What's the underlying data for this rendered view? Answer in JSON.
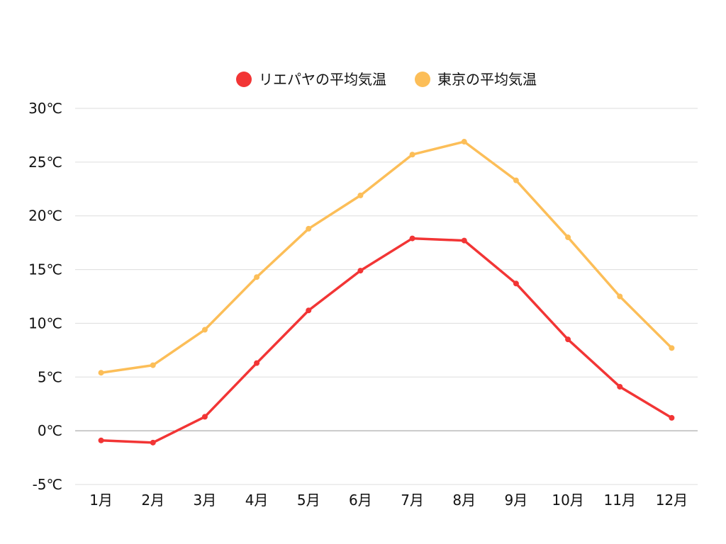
{
  "colors": {
    "series": [
      "#f23535",
      "#fcbe58"
    ],
    "grid": "#dddddd",
    "zero_line": "#999999",
    "text": "#111111",
    "background": "#ffffff"
  },
  "chart_data": {
    "type": "line",
    "title": "",
    "xlabel": "",
    "ylabel": "",
    "categories": [
      "1月",
      "2月",
      "3月",
      "4月",
      "5月",
      "6月",
      "7月",
      "8月",
      "9月",
      "10月",
      "11月",
      "12月"
    ],
    "series": [
      {
        "name": "リエパヤの平均気温",
        "values": [
          -0.9,
          -1.1,
          1.3,
          6.3,
          11.2,
          14.9,
          17.9,
          17.7,
          13.7,
          8.5,
          4.1,
          1.2
        ]
      },
      {
        "name": "東京の平均気温",
        "values": [
          5.4,
          6.1,
          9.4,
          14.3,
          18.8,
          21.9,
          25.7,
          26.9,
          23.3,
          18.0,
          12.5,
          7.7
        ]
      }
    ],
    "ylim": [
      -5,
      30
    ],
    "y_ticks": [
      30,
      25,
      20,
      15,
      10,
      5,
      0,
      -5
    ],
    "y_tick_labels": [
      "30℃",
      "25℃",
      "20℃",
      "15℃",
      "10℃",
      "5℃",
      "0℃",
      "-5℃"
    ],
    "grid": true,
    "legend_position": "top-center",
    "markers": true
  }
}
